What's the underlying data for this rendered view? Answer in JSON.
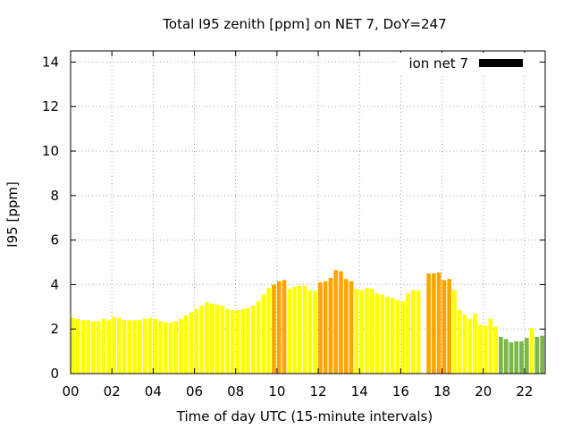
{
  "chart_data": {
    "type": "bar",
    "title": "Total I95 zenith [ppm] on NET 7, DoY=247",
    "xlabel": "Time of day UTC (15-minute intervals)",
    "ylabel": "I95 [ppm]",
    "xlim": [
      0,
      23
    ],
    "ylim": [
      0,
      14.5
    ],
    "x_ticks": [
      0,
      2,
      4,
      6,
      8,
      10,
      12,
      14,
      16,
      18,
      20,
      22
    ],
    "x_tick_labels": [
      "00",
      "02",
      "04",
      "06",
      "08",
      "10",
      "12",
      "14",
      "16",
      "18",
      "20",
      "22"
    ],
    "y_ticks": [
      0,
      2,
      4,
      6,
      8,
      10,
      12,
      14
    ],
    "y_tick_labels": [
      "0",
      "2",
      "4",
      "6",
      "8",
      "10",
      "12",
      "14"
    ],
    "grid": true,
    "legend": {
      "position": "top-right",
      "entries": [
        {
          "label": "ion net 7",
          "color": "#000000"
        }
      ]
    },
    "bar_interval_hours": 0.25,
    "colors": {
      "yellow": "#ffff00",
      "orange": "#ffa500",
      "green": "#7ab648"
    },
    "bars": [
      {
        "t": 0.0,
        "value": 2.5,
        "color": "#ffff00"
      },
      {
        "t": 0.25,
        "value": 2.45,
        "color": "#ffff00"
      },
      {
        "t": 0.5,
        "value": 2.4,
        "color": "#ffff00"
      },
      {
        "t": 0.75,
        "value": 2.4,
        "color": "#ffff00"
      },
      {
        "t": 1.0,
        "value": 2.35,
        "color": "#ffff00"
      },
      {
        "t": 1.25,
        "value": 2.35,
        "color": "#ffff00"
      },
      {
        "t": 1.5,
        "value": 2.45,
        "color": "#ffff00"
      },
      {
        "t": 1.75,
        "value": 2.4,
        "color": "#ffff00"
      },
      {
        "t": 2.0,
        "value": 2.55,
        "color": "#ffff00"
      },
      {
        "t": 2.25,
        "value": 2.5,
        "color": "#ffff00"
      },
      {
        "t": 2.5,
        "value": 2.4,
        "color": "#ffff00"
      },
      {
        "t": 2.75,
        "value": 2.4,
        "color": "#ffff00"
      },
      {
        "t": 3.0,
        "value": 2.4,
        "color": "#ffff00"
      },
      {
        "t": 3.25,
        "value": 2.4,
        "color": "#ffff00"
      },
      {
        "t": 3.5,
        "value": 2.45,
        "color": "#ffff00"
      },
      {
        "t": 3.75,
        "value": 2.5,
        "color": "#ffff00"
      },
      {
        "t": 4.0,
        "value": 2.45,
        "color": "#ffff00"
      },
      {
        "t": 4.25,
        "value": 2.35,
        "color": "#ffff00"
      },
      {
        "t": 4.5,
        "value": 2.3,
        "color": "#ffff00"
      },
      {
        "t": 4.75,
        "value": 2.3,
        "color": "#ffff00"
      },
      {
        "t": 5.0,
        "value": 2.35,
        "color": "#ffff00"
      },
      {
        "t": 5.25,
        "value": 2.45,
        "color": "#ffff00"
      },
      {
        "t": 5.5,
        "value": 2.6,
        "color": "#ffff00"
      },
      {
        "t": 5.75,
        "value": 2.75,
        "color": "#ffff00"
      },
      {
        "t": 6.0,
        "value": 2.9,
        "color": "#ffff00"
      },
      {
        "t": 6.25,
        "value": 3.05,
        "color": "#ffff00"
      },
      {
        "t": 6.5,
        "value": 3.2,
        "color": "#ffff00"
      },
      {
        "t": 6.75,
        "value": 3.15,
        "color": "#ffff00"
      },
      {
        "t": 7.0,
        "value": 3.1,
        "color": "#ffff00"
      },
      {
        "t": 7.25,
        "value": 3.05,
        "color": "#ffff00"
      },
      {
        "t": 7.5,
        "value": 2.9,
        "color": "#ffff00"
      },
      {
        "t": 7.75,
        "value": 2.85,
        "color": "#ffff00"
      },
      {
        "t": 8.0,
        "value": 2.85,
        "color": "#ffff00"
      },
      {
        "t": 8.25,
        "value": 2.9,
        "color": "#ffff00"
      },
      {
        "t": 8.5,
        "value": 2.95,
        "color": "#ffff00"
      },
      {
        "t": 8.75,
        "value": 3.05,
        "color": "#ffff00"
      },
      {
        "t": 9.0,
        "value": 3.25,
        "color": "#ffff00"
      },
      {
        "t": 9.25,
        "value": 3.55,
        "color": "#ffff00"
      },
      {
        "t": 9.5,
        "value": 3.85,
        "color": "#ffff00"
      },
      {
        "t": 9.75,
        "value": 4.0,
        "color": "#ffa500"
      },
      {
        "t": 10.0,
        "value": 4.15,
        "color": "#ffa500"
      },
      {
        "t": 10.25,
        "value": 4.2,
        "color": "#ffa500"
      },
      {
        "t": 10.5,
        "value": 3.8,
        "color": "#ffff00"
      },
      {
        "t": 10.75,
        "value": 3.9,
        "color": "#ffff00"
      },
      {
        "t": 11.0,
        "value": 3.95,
        "color": "#ffff00"
      },
      {
        "t": 11.25,
        "value": 3.95,
        "color": "#ffff00"
      },
      {
        "t": 11.5,
        "value": 3.75,
        "color": "#ffff00"
      },
      {
        "t": 11.75,
        "value": 3.7,
        "color": "#ffff00"
      },
      {
        "t": 12.0,
        "value": 4.1,
        "color": "#ffa500"
      },
      {
        "t": 12.25,
        "value": 4.15,
        "color": "#ffa500"
      },
      {
        "t": 12.5,
        "value": 4.3,
        "color": "#ffa500"
      },
      {
        "t": 12.75,
        "value": 4.65,
        "color": "#ffa500"
      },
      {
        "t": 13.0,
        "value": 4.6,
        "color": "#ffa500"
      },
      {
        "t": 13.25,
        "value": 4.25,
        "color": "#ffa500"
      },
      {
        "t": 13.5,
        "value": 4.15,
        "color": "#ffa500"
      },
      {
        "t": 13.75,
        "value": 3.8,
        "color": "#ffff00"
      },
      {
        "t": 14.0,
        "value": 3.75,
        "color": "#ffff00"
      },
      {
        "t": 14.25,
        "value": 3.85,
        "color": "#ffff00"
      },
      {
        "t": 14.5,
        "value": 3.8,
        "color": "#ffff00"
      },
      {
        "t": 14.75,
        "value": 3.6,
        "color": "#ffff00"
      },
      {
        "t": 15.0,
        "value": 3.55,
        "color": "#ffff00"
      },
      {
        "t": 15.25,
        "value": 3.45,
        "color": "#ffff00"
      },
      {
        "t": 15.5,
        "value": 3.4,
        "color": "#ffff00"
      },
      {
        "t": 15.75,
        "value": 3.3,
        "color": "#ffff00"
      },
      {
        "t": 16.0,
        "value": 3.25,
        "color": "#ffff00"
      },
      {
        "t": 16.25,
        "value": 3.6,
        "color": "#ffff00"
      },
      {
        "t": 16.5,
        "value": 3.75,
        "color": "#ffff00"
      },
      {
        "t": 16.75,
        "value": 3.75,
        "color": "#ffff00"
      },
      {
        "t": 17.25,
        "value": 4.5,
        "color": "#ffa500"
      },
      {
        "t": 17.5,
        "value": 4.5,
        "color": "#ffa500"
      },
      {
        "t": 17.75,
        "value": 4.55,
        "color": "#ffa500"
      },
      {
        "t": 18.0,
        "value": 4.2,
        "color": "#ffa500"
      },
      {
        "t": 18.25,
        "value": 4.25,
        "color": "#ffa500"
      },
      {
        "t": 18.5,
        "value": 3.75,
        "color": "#ffff00"
      },
      {
        "t": 18.75,
        "value": 2.85,
        "color": "#ffff00"
      },
      {
        "t": 19.0,
        "value": 2.65,
        "color": "#ffff00"
      },
      {
        "t": 19.25,
        "value": 2.45,
        "color": "#ffff00"
      },
      {
        "t": 19.5,
        "value": 2.7,
        "color": "#ffff00"
      },
      {
        "t": 19.75,
        "value": 2.2,
        "color": "#ffff00"
      },
      {
        "t": 20.0,
        "value": 2.15,
        "color": "#ffff00"
      },
      {
        "t": 20.25,
        "value": 2.45,
        "color": "#ffff00"
      },
      {
        "t": 20.5,
        "value": 2.1,
        "color": "#ffff00"
      },
      {
        "t": 20.75,
        "value": 1.65,
        "color": "#7ab648"
      },
      {
        "t": 21.0,
        "value": 1.55,
        "color": "#7ab648"
      },
      {
        "t": 21.25,
        "value": 1.4,
        "color": "#7ab648"
      },
      {
        "t": 21.5,
        "value": 1.45,
        "color": "#7ab648"
      },
      {
        "t": 21.75,
        "value": 1.45,
        "color": "#7ab648"
      },
      {
        "t": 22.0,
        "value": 1.6,
        "color": "#7ab648"
      },
      {
        "t": 22.25,
        "value": 2.05,
        "color": "#ffff00"
      },
      {
        "t": 22.5,
        "value": 1.65,
        "color": "#7ab648"
      },
      {
        "t": 22.75,
        "value": 1.7,
        "color": "#7ab648"
      }
    ]
  }
}
